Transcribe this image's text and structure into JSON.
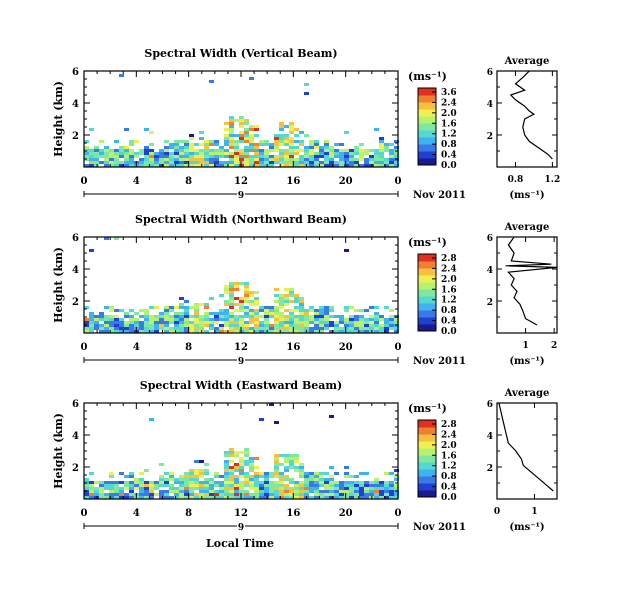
{
  "xlabel": "Local Time",
  "ylabel": "Height (km)",
  "unit_label": "(ms⁻¹)",
  "avg_title": "Average",
  "date_label": "Nov 2011",
  "colormap": [
    "#1a1a8c",
    "#2040d0",
    "#3a7ae8",
    "#3fb2f0",
    "#55d8d0",
    "#7fe8a0",
    "#b8f070",
    "#ecf050",
    "#f8c040",
    "#f08030",
    "#e03020"
  ],
  "chart_data": [
    {
      "type": "heatmap",
      "title": "Spectral Width (Vertical Beam)",
      "x_ticks": [
        "0",
        "4",
        "8",
        "12",
        "16",
        "20",
        "0"
      ],
      "xlim": [
        0,
        24
      ],
      "y_ticks": [
        "2",
        "4",
        "6"
      ],
      "ylim": [
        0,
        6
      ],
      "day_marker": "9",
      "colorbar_ticks": [
        "3.6",
        "2.4",
        "2.0",
        "1.6",
        "1.2",
        "0.8",
        "0.4",
        "0.0"
      ],
      "colorbar_range": [
        0.0,
        3.6
      ],
      "average": {
        "x_ticks": [
          "0.8",
          "1.2"
        ],
        "xlim": [
          0.6,
          1.25
        ],
        "xlabel": "(ms⁻¹)",
        "profile": [
          [
            0.5,
            1.2
          ],
          [
            0.8,
            1.15
          ],
          [
            1.2,
            1.05
          ],
          [
            1.6,
            0.95
          ],
          [
            2.0,
            0.9
          ],
          [
            2.5,
            0.88
          ],
          [
            3.0,
            0.9
          ],
          [
            3.3,
            1.0
          ],
          [
            3.5,
            0.95
          ],
          [
            3.8,
            0.9
          ],
          [
            4.2,
            0.8
          ],
          [
            4.5,
            0.75
          ],
          [
            4.8,
            0.9
          ],
          [
            5.2,
            0.8
          ],
          [
            5.6,
            0.88
          ],
          [
            6.0,
            0.95
          ]
        ]
      }
    },
    {
      "type": "heatmap",
      "title": "Spectral Width (Northward Beam)",
      "x_ticks": [
        "0",
        "4",
        "8",
        "12",
        "16",
        "20",
        "0"
      ],
      "xlim": [
        0,
        24
      ],
      "y_ticks": [
        "2",
        "4",
        "6"
      ],
      "ylim": [
        0,
        6
      ],
      "day_marker": "9",
      "colorbar_ticks": [
        "2.8",
        "2.4",
        "2.0",
        "1.6",
        "1.2",
        "0.8",
        "0.4",
        "0.0"
      ],
      "colorbar_range": [
        0.0,
        2.8
      ],
      "average": {
        "x_ticks": [
          "1",
          "2"
        ],
        "xlim": [
          0,
          2.1
        ],
        "xlabel": "(ms⁻¹)",
        "profile": [
          [
            0.5,
            1.4
          ],
          [
            0.9,
            1.0
          ],
          [
            1.4,
            0.9
          ],
          [
            1.8,
            0.8
          ],
          [
            2.2,
            0.6
          ],
          [
            2.6,
            0.7
          ],
          [
            3.0,
            0.5
          ],
          [
            3.4,
            0.6
          ],
          [
            3.8,
            0.4
          ],
          [
            4.1,
            2.1
          ],
          [
            4.2,
            0.3
          ],
          [
            4.3,
            1.9
          ],
          [
            4.5,
            0.5
          ],
          [
            5.0,
            0.6
          ],
          [
            5.5,
            0.4
          ],
          [
            6.0,
            0.6
          ]
        ]
      }
    },
    {
      "type": "heatmap",
      "title": "Spectral Width (Eastward Beam)",
      "x_ticks": [
        "0",
        "4",
        "8",
        "12",
        "16",
        "20",
        "0"
      ],
      "xlim": [
        0,
        24
      ],
      "y_ticks": [
        "2",
        "4",
        "6"
      ],
      "ylim": [
        0,
        6
      ],
      "day_marker": "9",
      "colorbar_ticks": [
        "2.8",
        "2.4",
        "2.0",
        "1.6",
        "1.2",
        "0.8",
        "0.4",
        "0.0"
      ],
      "colorbar_range": [
        0.0,
        2.8
      ],
      "average": {
        "x_ticks": [
          "0",
          "1"
        ],
        "xlim": [
          0,
          1.6
        ],
        "xlabel": "(ms⁻¹)",
        "profile": [
          [
            0.5,
            1.5
          ],
          [
            0.9,
            1.3
          ],
          [
            1.3,
            1.1
          ],
          [
            1.7,
            0.9
          ],
          [
            2.1,
            0.7
          ],
          [
            2.5,
            0.65
          ],
          [
            3.0,
            0.5
          ],
          [
            3.5,
            0.3
          ],
          [
            4.0,
            0.25
          ],
          [
            4.5,
            0.2
          ],
          [
            5.0,
            0.15
          ],
          [
            5.5,
            0.1
          ],
          [
            6.0,
            0.05
          ]
        ]
      }
    }
  ]
}
